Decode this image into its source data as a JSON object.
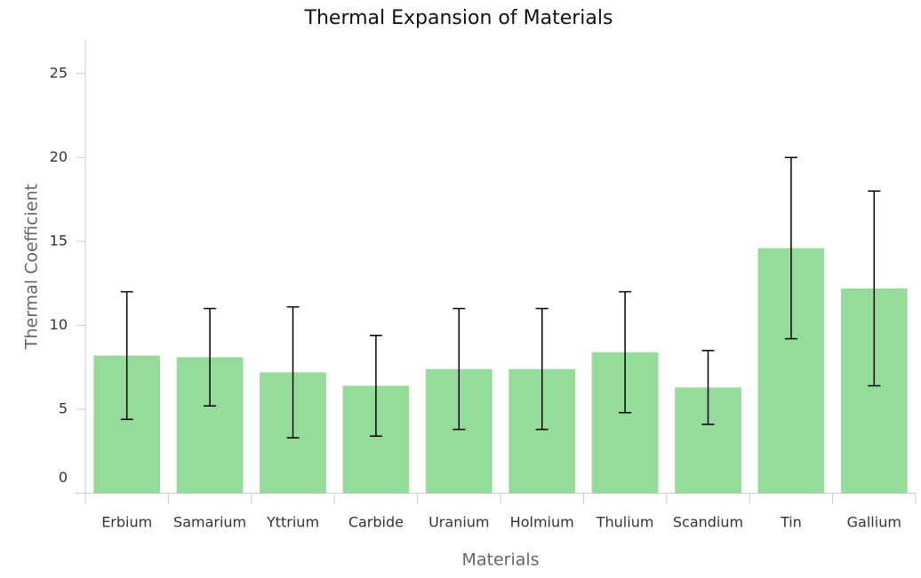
{
  "chart_data": {
    "type": "bar",
    "title": "Thermal Expansion of Materials",
    "x_label": "Materials",
    "y_label": "Thermal Coefficient",
    "categories": [
      "Erbium",
      "Samarium",
      "Yttrium",
      "Carbide",
      "Uranium",
      "Holmium",
      "Thulium",
      "Scandium",
      "Tin",
      "Gallium"
    ],
    "values": [
      8.2,
      8.1,
      7.2,
      6.4,
      7.4,
      7.4,
      8.4,
      6.3,
      14.6,
      12.2
    ],
    "errors": [
      3.8,
      2.9,
      3.9,
      3.0,
      3.6,
      3.6,
      3.6,
      2.2,
      5.4,
      5.8
    ],
    "color": "#95dc9a",
    "error_color": "#000000",
    "ylim": [
      0,
      27
    ],
    "yticks": [
      0,
      5,
      10,
      15,
      20,
      25
    ],
    "grid": false
  }
}
